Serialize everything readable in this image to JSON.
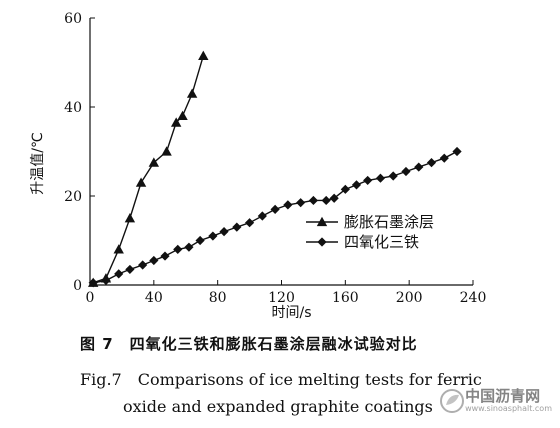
{
  "chart_data": {
    "type": "line",
    "xlabel": "时间/s",
    "ylabel": "升温值/℃",
    "xlim": [
      0,
      240
    ],
    "ylim": [
      0,
      60
    ],
    "x_ticks": [
      0,
      40,
      80,
      120,
      160,
      200,
      240
    ],
    "y_ticks": [
      0,
      20,
      40,
      60
    ],
    "grid": false,
    "legend_position": "center-right",
    "series": [
      {
        "name": "膨胀石墨涂层",
        "marker": "triangle",
        "x": [
          2,
          10,
          18,
          25,
          32,
          40,
          48,
          54,
          58,
          64,
          71
        ],
        "y": [
          0.5,
          1.5,
          8,
          15,
          23,
          27.5,
          30,
          36.5,
          38,
          43,
          51.5
        ]
      },
      {
        "name": "四氧化三铁",
        "marker": "diamond",
        "x": [
          2,
          10,
          18,
          25,
          33,
          40,
          47,
          55,
          62,
          69,
          77,
          84,
          92,
          100,
          108,
          116,
          124,
          132,
          140,
          148,
          153,
          160,
          167,
          174,
          182,
          190,
          198,
          206,
          214,
          222,
          230
        ],
        "y": [
          0.5,
          1,
          2.5,
          3.5,
          4.5,
          5.5,
          6.5,
          8,
          8.5,
          10,
          11,
          12,
          13,
          14,
          15.5,
          17,
          18,
          18.5,
          19,
          19,
          19.5,
          21.5,
          22.5,
          23.5,
          24,
          24.5,
          25.5,
          26.5,
          27.5,
          28.5,
          30
        ]
      }
    ]
  },
  "caption": {
    "cn": "图 7　四氧化三铁和膨胀石墨涂层融冰试验对比",
    "en_line1": "Fig.7　Comparisons of ice melting tests for ferric",
    "en_line2": "oxide and expanded graphite coatings"
  },
  "watermark": {
    "text": "中国沥青网",
    "url": "www.sinoasphalt.com"
  },
  "colors": {
    "ink": "#111111",
    "watermark": "#8a8a8a"
  }
}
